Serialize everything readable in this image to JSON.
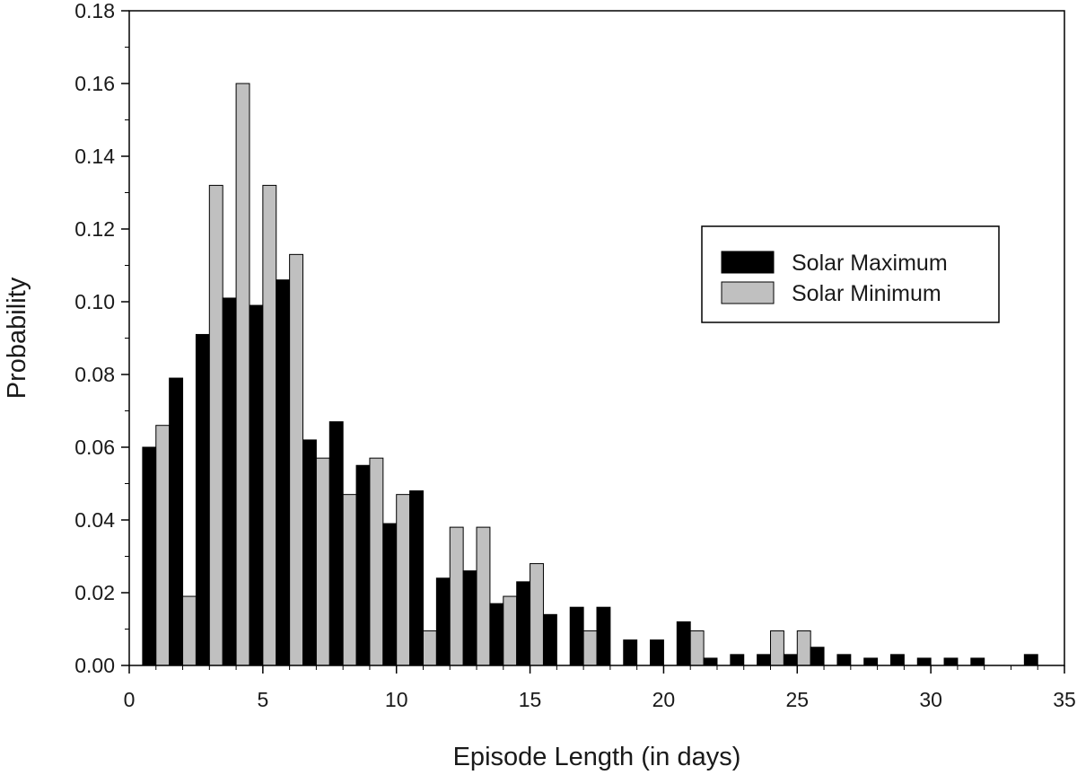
{
  "chart_data": {
    "type": "bar",
    "title": "",
    "xlabel": "Episode Length (in days)",
    "ylabel": "Probability",
    "xlim": [
      0,
      35
    ],
    "ylim": [
      0,
      0.18
    ],
    "xticks": [
      0,
      5,
      10,
      15,
      20,
      25,
      30,
      35
    ],
    "xtick_labels": [
      "0",
      "5",
      "10",
      "15",
      "20",
      "25",
      "30",
      "35"
    ],
    "yticks": [
      0,
      0.02,
      0.04,
      0.06,
      0.08,
      0.1,
      0.12,
      0.14,
      0.16,
      0.18
    ],
    "ytick_labels": [
      "0.00",
      "0.02",
      "0.04",
      "0.06",
      "0.08",
      "0.10",
      "0.12",
      "0.14",
      "0.16",
      "0.18"
    ],
    "x": [
      1,
      2,
      3,
      4,
      5,
      6,
      7,
      8,
      9,
      10,
      11,
      12,
      13,
      14,
      15,
      16,
      17,
      18,
      19,
      20,
      21,
      22,
      23,
      24,
      25,
      26,
      27,
      28,
      29,
      30,
      31,
      32,
      33,
      34
    ],
    "bin_width": 1,
    "grid": false,
    "legend_position": "upper right",
    "series": [
      {
        "name": "Solar Maximum",
        "color": "#000000",
        "values": [
          0.06,
          0.079,
          0.091,
          0.101,
          0.099,
          0.106,
          0.062,
          0.067,
          0.055,
          0.039,
          0.048,
          0.024,
          0.026,
          0.017,
          0.023,
          0.014,
          0.016,
          0.016,
          0.007,
          0.007,
          0.012,
          0.002,
          0.003,
          0.003,
          0.003,
          0.005,
          0.003,
          0.002,
          0.003,
          0.002,
          0.002,
          0.002,
          0.0,
          0.003
        ]
      },
      {
        "name": "Solar Minimum",
        "color": "#c0c0c0",
        "values": [
          0.066,
          0.019,
          0.132,
          0.16,
          0.132,
          0.113,
          0.057,
          0.047,
          0.057,
          0.047,
          0.0095,
          0.038,
          0.038,
          0.019,
          0.028,
          0.0,
          0.0095,
          0.0,
          0.0,
          0.0,
          0.0095,
          0.0,
          0.0,
          0.0095,
          0.0095,
          0.0,
          0.0,
          0.0,
          0.0,
          0.0,
          0.0,
          0.0,
          0.0,
          0.0
        ]
      }
    ]
  }
}
